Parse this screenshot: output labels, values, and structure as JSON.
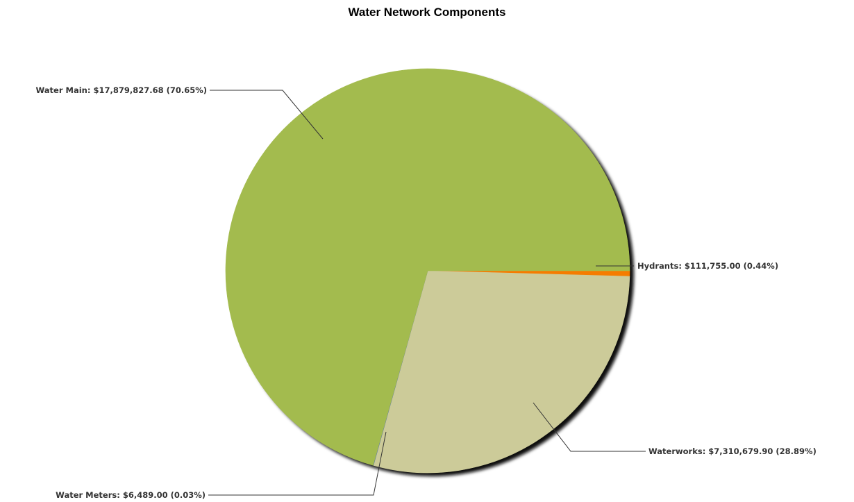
{
  "chart_data": {
    "type": "pie",
    "title": "Water Network Components",
    "slices": [
      {
        "label": "Hydrants",
        "value_text": "$111,755.00",
        "value": 111755.0,
        "percent_text": "0.44%",
        "color": "#f57c00"
      },
      {
        "label": "Waterworks",
        "value_text": "$7,310,679.90",
        "value": 7310679.9,
        "percent_text": "28.89%",
        "color": "#cccb99"
      },
      {
        "label": "Water Meters",
        "value_text": "$6,489.00",
        "value": 6489.0,
        "percent_text": "0.03%",
        "color": "#4d6bb3"
      },
      {
        "label": "Water Main",
        "value_text": "$17,879,827.68",
        "value": 17879827.68,
        "percent_text": "70.65%",
        "color": "#a3bb4e"
      }
    ],
    "legend": "none",
    "label_placement": "outside with leader lines"
  }
}
